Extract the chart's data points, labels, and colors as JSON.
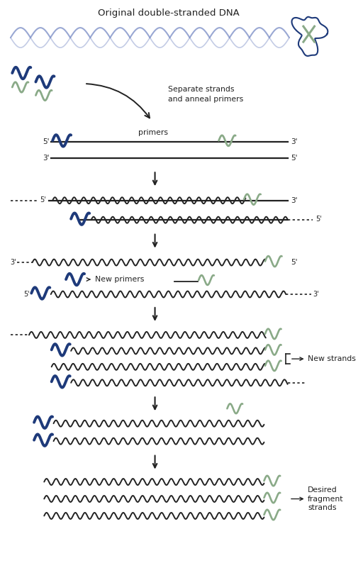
{
  "title": "Original double-stranded DNA",
  "bg_color": "#ffffff",
  "dark_blue": "#1e3a7a",
  "light_green": "#8aaa88",
  "light_green_fill": "#b8d4b4",
  "helix_blue": "#8899cc",
  "helix_blue2": "#aabbdd",
  "black": "#222222",
  "fig_width": 5.12,
  "fig_height": 8.25,
  "dpi": 100,
  "xlim": [
    0,
    10.24
  ],
  "ylim": [
    0,
    16.5
  ]
}
